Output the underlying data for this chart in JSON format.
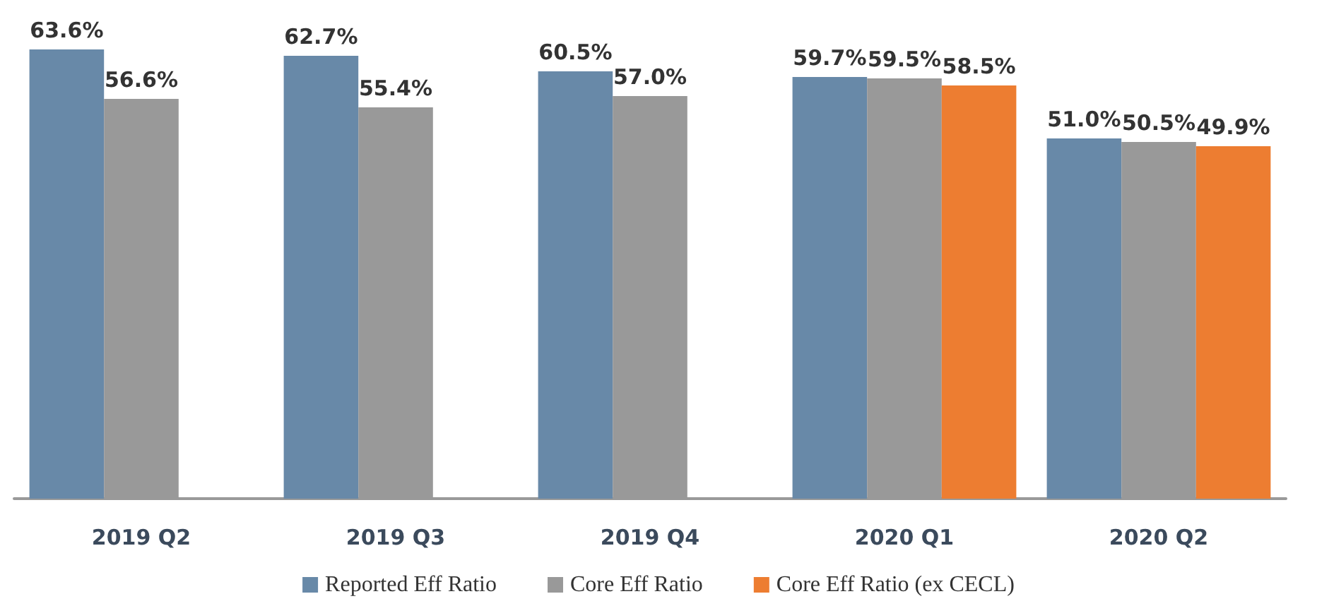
{
  "chart_data": {
    "type": "bar",
    "categories": [
      "2019 Q2",
      "2019 Q3",
      "2019 Q4",
      "2020 Q1",
      "2020 Q2"
    ],
    "series": [
      {
        "name": "Reported Eff Ratio",
        "color": "#6889a8",
        "values": [
          63.6,
          62.7,
          60.5,
          59.7,
          51.0
        ],
        "value_labels": [
          "63.6%",
          "62.7%",
          "60.5%",
          "59.7%",
          "51.0%"
        ]
      },
      {
        "name": "Core Eff Ratio",
        "color": "#999999",
        "values": [
          56.6,
          55.4,
          57.0,
          59.5,
          50.5
        ],
        "value_labels": [
          "56.6%",
          "55.4%",
          "57.0%",
          "59.5%",
          "50.5%"
        ]
      },
      {
        "name": "Core Eff Ratio (ex CECL)",
        "color": "#ed7d31",
        "values": [
          null,
          null,
          null,
          58.5,
          49.9
        ],
        "value_labels": [
          null,
          null,
          null,
          "58.5%",
          "49.9%"
        ]
      }
    ],
    "legend": "bottom"
  }
}
